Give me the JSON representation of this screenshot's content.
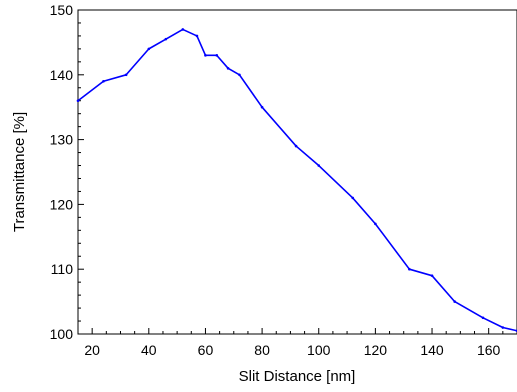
{
  "chart_data": {
    "type": "line",
    "title": "",
    "xlabel": "Slit Distance [nm]",
    "ylabel": "Transmittance [%]",
    "xlim": [
      15,
      170
    ],
    "ylim": [
      100,
      150
    ],
    "xticks": [
      20,
      40,
      60,
      80,
      100,
      120,
      140,
      160
    ],
    "yticks": [
      100,
      110,
      120,
      130,
      140,
      150
    ],
    "grid": false,
    "legend": "none",
    "series": [
      {
        "color": "#0000ff",
        "x": [
          15,
          24,
          32,
          40,
          46,
          52,
          57,
          60,
          64,
          68,
          72,
          80,
          92,
          100,
          112,
          120,
          132,
          140,
          148,
          158,
          165,
          170
        ],
        "y": [
          136,
          139,
          140,
          144,
          145.5,
          147,
          146,
          143,
          143,
          141,
          140,
          135,
          129,
          126,
          121,
          117,
          110,
          109,
          105,
          102.5,
          101,
          100.5
        ]
      }
    ]
  }
}
